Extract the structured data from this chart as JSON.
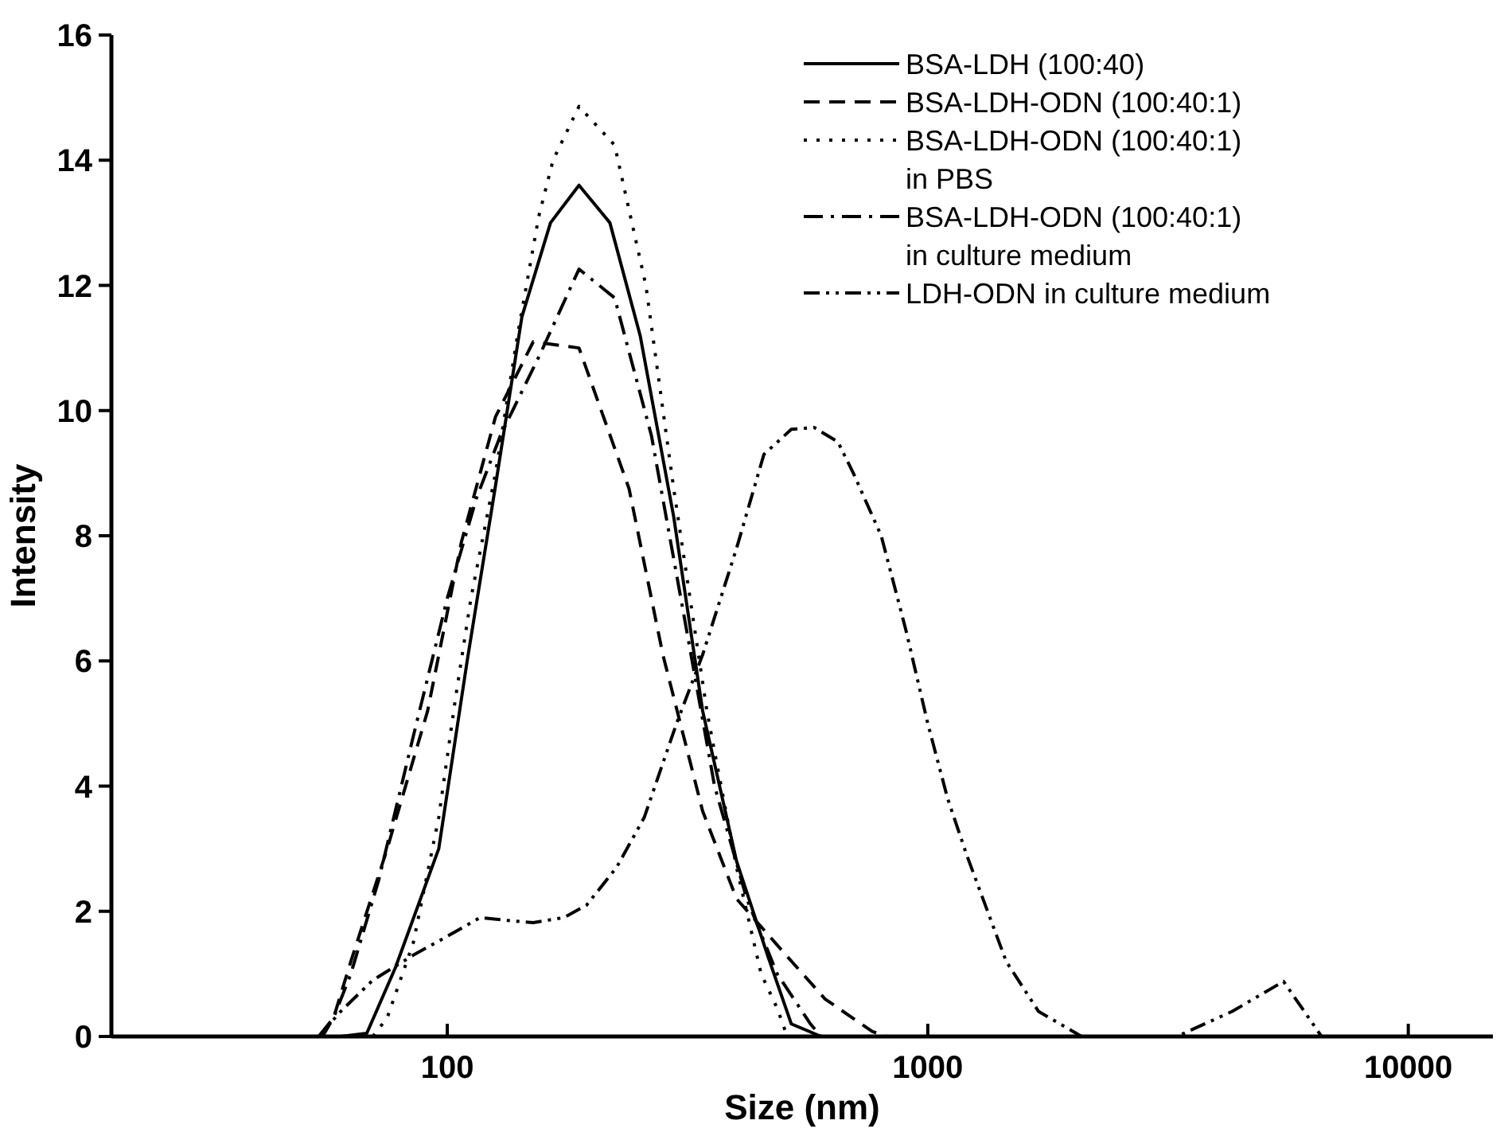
{
  "chart_data": {
    "type": "line",
    "xlabel": "Size (nm)",
    "ylabel": "Intensity",
    "log": "x",
    "xlim": [
      20,
      15000
    ],
    "xticks": [
      100,
      1000,
      10000
    ],
    "ylim": [
      0,
      16
    ],
    "yticks": [
      0,
      2,
      4,
      6,
      8,
      10,
      12,
      14,
      16
    ],
    "grid": false,
    "legend": "top right",
    "series": [
      {
        "name": "BSA-LDH (100:40)",
        "color": "#000000",
        "line_style": "solid",
        "x": [
          60,
          68,
          78,
          96,
          110,
          126,
          143,
          164,
          188,
          218,
          252,
          296,
          340,
          400,
          464,
          520,
          600
        ],
        "values": [
          0,
          0.05,
          1.1,
          3.0,
          6.0,
          8.8,
          11.5,
          13.0,
          13.6,
          13.0,
          11.2,
          8.3,
          5.2,
          2.8,
          1.3,
          0.2,
          0
        ]
      },
      {
        "name": "BSA-LDH-ODN (100:40:1)",
        "color": "#000000",
        "line_style": "dashed",
        "x": [
          55,
          58,
          63,
          75,
          91,
          107,
          126,
          151,
          188,
          239,
          281,
          340,
          400,
          507,
          611,
          766,
          820
        ],
        "values": [
          0,
          0.3,
          1.2,
          3.0,
          5.2,
          7.9,
          9.9,
          11.1,
          11.0,
          8.75,
          6.1,
          3.6,
          2.2,
          1.3,
          0.6,
          0.08,
          0
        ]
      },
      {
        "name": "BSA-LDH-ODN (100:40:1)\nin PBS",
        "color": "#000000",
        "line_style": "dotted",
        "x": [
          70,
          75,
          85,
          96,
          104,
          112,
          126,
          140,
          155,
          166,
          188,
          223,
          259,
          296,
          347,
          400,
          450,
          486,
          510
        ],
        "values": [
          0,
          0.3,
          1.5,
          3.5,
          5.4,
          7.0,
          9.0,
          11.2,
          13.1,
          14.0,
          14.86,
          14.24,
          12.0,
          8.75,
          5.2,
          2.7,
          1.0,
          0.45,
          0
        ]
      },
      {
        "name": "BSA-LDH-ODN (100:40:1)\nin culture medium",
        "color": "#000000",
        "line_style": "dashdot",
        "x": [
          54,
          58,
          63,
          72,
          85,
          100,
          115,
          129,
          156,
          188,
          223,
          266,
          313,
          360,
          420,
          486,
          570,
          600
        ],
        "values": [
          0,
          0.3,
          1.0,
          2.5,
          4.8,
          7.0,
          8.6,
          9.6,
          10.9,
          12.26,
          11.8,
          9.6,
          6.6,
          4.0,
          2.2,
          1.0,
          0.2,
          0
        ]
      },
      {
        "name": "LDH-ODN in culture medium",
        "color": "#000000",
        "line_style": "dashdotdot",
        "x": [
          54,
          60,
          70,
          85,
          100,
          117,
          135,
          151,
          175,
          195,
          225,
          257,
          300,
          340,
          400,
          456,
          520,
          580,
          650,
          700,
          800,
          900,
          1000,
          1100,
          1205,
          1456,
          1700,
          2090,
          3300,
          4300,
          5500,
          6600
        ],
        "values": [
          0,
          0.4,
          0.9,
          1.3,
          1.6,
          1.9,
          1.85,
          1.82,
          1.9,
          2.1,
          2.7,
          3.5,
          5.0,
          6.1,
          7.8,
          9.3,
          9.7,
          9.73,
          9.5,
          9.0,
          8.0,
          6.5,
          5.0,
          3.8,
          2.9,
          1.2,
          0.4,
          0,
          0,
          0.4,
          0.88,
          0
        ]
      }
    ]
  }
}
